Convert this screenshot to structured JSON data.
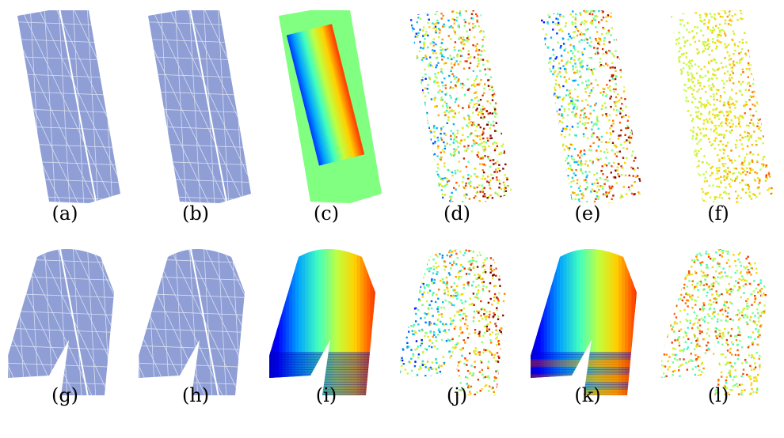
{
  "panels": [
    {
      "id": "a",
      "caption": "(a)",
      "shape": "slab",
      "style": "mesh"
    },
    {
      "id": "b",
      "caption": "(b)",
      "shape": "slab",
      "style": "mesh"
    },
    {
      "id": "c",
      "caption": "(c)",
      "shape": "slab",
      "style": "field-smooth"
    },
    {
      "id": "d",
      "caption": "(d)",
      "shape": "slab",
      "style": "field-noisy"
    },
    {
      "id": "e",
      "caption": "(e)",
      "shape": "slab",
      "style": "field-crack"
    },
    {
      "id": "f",
      "caption": "(f)",
      "shape": "slab",
      "style": "field-noisy-dark"
    },
    {
      "id": "g",
      "caption": "(g)",
      "shape": "bent",
      "style": "mesh"
    },
    {
      "id": "h",
      "caption": "(h)",
      "shape": "bent",
      "style": "mesh"
    },
    {
      "id": "i",
      "caption": "(i)",
      "shape": "bent",
      "style": "field-smooth"
    },
    {
      "id": "j",
      "caption": "(j)",
      "shape": "bent",
      "style": "field-noisy"
    },
    {
      "id": "k",
      "caption": "(k)",
      "shape": "bent",
      "style": "field-bands"
    },
    {
      "id": "l",
      "caption": "(l)",
      "shape": "bent",
      "style": "field-noisy-light"
    }
  ],
  "colors": {
    "mesh_fill": "#8f9fd6",
    "mesh_line": "#e6e9f5",
    "colormap": [
      "#00008f",
      "#0000ff",
      "#00a0ff",
      "#40ffc0",
      "#c0ff40",
      "#ffd000",
      "#ff4000",
      "#800000"
    ]
  }
}
